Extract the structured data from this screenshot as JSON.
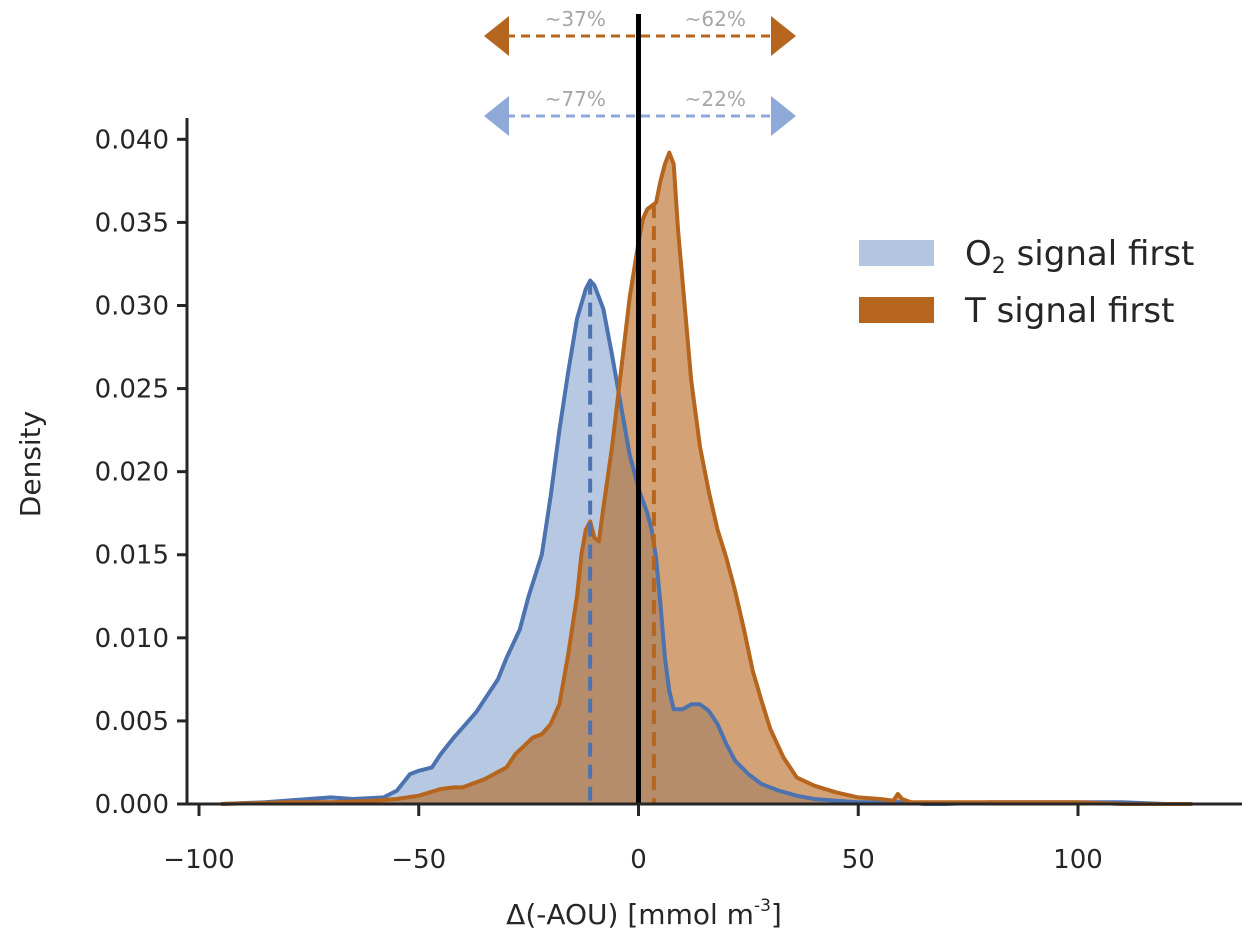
{
  "chart_data": {
    "type": "area",
    "title": "",
    "xlabel": "Δ(-AOU) [mmol m",
    "xlabel_sup": "-3",
    "xlabel_end": "]",
    "ylabel": "Density",
    "xlim": [
      -103,
      137
    ],
    "ylim": [
      0,
      0.0402
    ],
    "xticks": [
      -100,
      -50,
      0,
      50,
      100
    ],
    "xtick_labels": [
      "−100",
      "−50",
      "0",
      "50",
      "100"
    ],
    "yticks": [
      0,
      0.005,
      0.01,
      0.015,
      0.02,
      0.025,
      0.03,
      0.035,
      0.04
    ],
    "ytick_labels": [
      "0.000",
      "0.005",
      "0.010",
      "0.015",
      "0.020",
      "0.025",
      "0.030",
      "0.035",
      "0.040"
    ],
    "grid": false,
    "legend_position": "right",
    "legend": [
      {
        "label_main": "O",
        "label_sub": "2",
        "label_rest": " signal first",
        "color": "#b3c5e0"
      },
      {
        "label_main": "T signal first",
        "label_sub": "",
        "label_rest": "",
        "color": "#b5651d"
      }
    ],
    "series": [
      {
        "color_line": "#4c72b0",
        "color_fill": "#b3c5e0",
        "median": -11,
        "x": [
          -95,
          -85,
          -75,
          -70,
          -65,
          -58,
          -55,
          -52,
          -50,
          -47,
          -45,
          -42,
          -40,
          -37,
          -35,
          -32,
          -30,
          -27,
          -25,
          -22,
          -20,
          -18,
          -16,
          -14,
          -12,
          -11,
          -10,
          -8,
          -6,
          -4,
          -2,
          0,
          2,
          3,
          4,
          5,
          6,
          7,
          8,
          10,
          12,
          14,
          16,
          18,
          20,
          22,
          25,
          28,
          32,
          36,
          40,
          45,
          50,
          55,
          60,
          65,
          70,
          80,
          90,
          100,
          110,
          120,
          125
        ],
        "y": [
          0,
          0.0001,
          0.0003,
          0.0004,
          0.0003,
          0.0004,
          0.0008,
          0.0018,
          0.002,
          0.0022,
          0.003,
          0.004,
          0.0046,
          0.0055,
          0.0063,
          0.0075,
          0.0088,
          0.0105,
          0.0125,
          0.015,
          0.0185,
          0.0225,
          0.026,
          0.0292,
          0.031,
          0.0315,
          0.0312,
          0.0298,
          0.027,
          0.024,
          0.021,
          0.019,
          0.0175,
          0.0165,
          0.0148,
          0.012,
          0.0088,
          0.0068,
          0.0057,
          0.0057,
          0.006,
          0.006,
          0.0056,
          0.0048,
          0.0036,
          0.0026,
          0.0018,
          0.0012,
          0.0008,
          0.0005,
          0.0003,
          0.0002,
          0.0001,
          0.0001,
          0.0001,
          0,
          0,
          0.0001,
          0.0001,
          0.0001,
          0.0001,
          0,
          0
        ]
      },
      {
        "color_line": "#b5651d",
        "color_fill": "#b5651d",
        "median": 3.5,
        "x": [
          -95,
          -80,
          -70,
          -60,
          -55,
          -50,
          -45,
          -42,
          -40,
          -35,
          -30,
          -28,
          -26,
          -24,
          -22,
          -20,
          -18,
          -16,
          -14,
          -13,
          -12,
          -11,
          -10,
          -9,
          -8,
          -6,
          -4,
          -2,
          0,
          1,
          2,
          3,
          4,
          5,
          6,
          7,
          8,
          9,
          10,
          12,
          14,
          16,
          18,
          20,
          22,
          24,
          26,
          28,
          30,
          33,
          36,
          40,
          45,
          50,
          55,
          58,
          59,
          60,
          62,
          65,
          70,
          80,
          90,
          100,
          110,
          120,
          126
        ],
        "y": [
          0,
          0.0001,
          0.0001,
          0.0002,
          0.0003,
          0.0005,
          0.0009,
          0.001,
          0.001,
          0.0015,
          0.0022,
          0.003,
          0.0035,
          0.004,
          0.0042,
          0.0048,
          0.006,
          0.009,
          0.0125,
          0.015,
          0.0165,
          0.017,
          0.016,
          0.0158,
          0.0178,
          0.0215,
          0.026,
          0.0305,
          0.0338,
          0.0352,
          0.0358,
          0.036,
          0.0362,
          0.0375,
          0.0385,
          0.0392,
          0.0385,
          0.0345,
          0.0315,
          0.0255,
          0.0215,
          0.0188,
          0.0165,
          0.0148,
          0.0128,
          0.0105,
          0.008,
          0.0062,
          0.0045,
          0.0028,
          0.0016,
          0.0011,
          0.0007,
          0.0004,
          0.0003,
          0.0002,
          0.0006,
          0.0003,
          0.0001,
          0.0001,
          0.0001,
          0.0001,
          0.0001,
          0.0001,
          0,
          0,
          0
        ]
      }
    ],
    "reference_line_x": 0,
    "split_arrows": [
      {
        "color": "#b5651d",
        "left_label": "~37%",
        "right_label": "~62%"
      },
      {
        "color": "#8ea9d8",
        "left_label": "~77%",
        "right_label": "~22%"
      }
    ]
  }
}
